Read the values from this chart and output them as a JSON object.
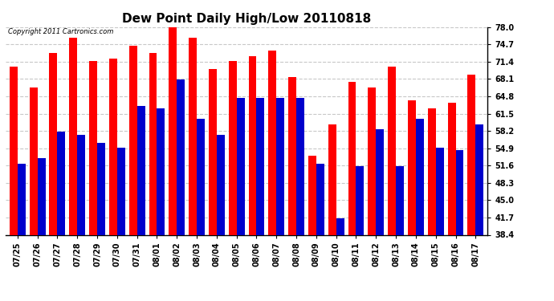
{
  "title": "Dew Point Daily High/Low 20110818",
  "copyright": "Copyright 2011 Cartronics.com",
  "categories": [
    "07/25",
    "07/26",
    "07/27",
    "07/28",
    "07/29",
    "07/30",
    "07/31",
    "08/01",
    "08/02",
    "08/03",
    "08/04",
    "08/05",
    "08/06",
    "08/07",
    "08/08",
    "08/09",
    "08/10",
    "08/11",
    "08/12",
    "08/13",
    "08/14",
    "08/15",
    "08/16",
    "08/17"
  ],
  "highs": [
    70.5,
    66.5,
    73.0,
    76.0,
    71.5,
    72.0,
    74.5,
    73.0,
    78.5,
    76.0,
    70.0,
    71.5,
    72.5,
    73.5,
    68.5,
    53.5,
    59.5,
    67.5,
    66.5,
    70.5,
    64.0,
    62.5,
    63.5,
    69.0
  ],
  "lows": [
    52.0,
    53.0,
    58.0,
    57.5,
    56.0,
    55.0,
    63.0,
    62.5,
    68.0,
    60.5,
    57.5,
    64.5,
    64.5,
    64.5,
    64.5,
    52.0,
    41.5,
    51.5,
    58.5,
    51.5,
    60.5,
    55.0,
    54.5,
    59.5
  ],
  "high_color": "#ff0000",
  "low_color": "#0000cc",
  "ylim_min": 38.4,
  "ylim_max": 78.0,
  "yticks": [
    38.4,
    41.7,
    45.0,
    48.3,
    51.6,
    54.9,
    58.2,
    61.5,
    64.8,
    68.1,
    71.4,
    74.7,
    78.0
  ],
  "bg_color": "#ffffff",
  "grid_color": "#c8c8c8",
  "bar_width": 0.4,
  "title_fontsize": 11,
  "tick_fontsize": 7,
  "copyright_fontsize": 6
}
